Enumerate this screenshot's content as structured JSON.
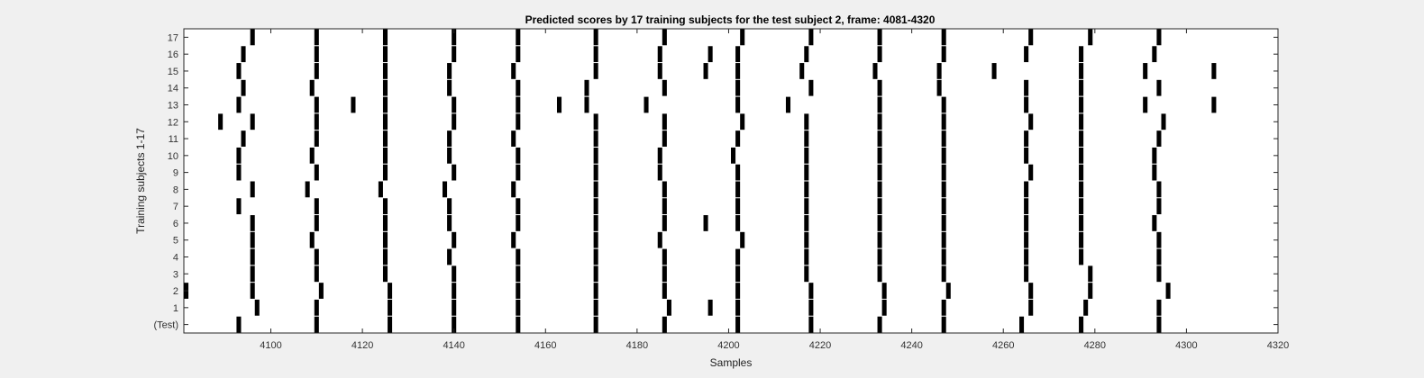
{
  "chart_data": {
    "type": "raster",
    "title": "Predicted scores by 17 training subjects for the test subject 2, frame: 4081-4320",
    "xlabel": "Samples",
    "ylabel": "Training subjects 1-17",
    "xlim": [
      4081,
      4320
    ],
    "x_ticks": [
      4100,
      4120,
      4140,
      4160,
      4180,
      4200,
      4220,
      4240,
      4260,
      4280,
      4300,
      4320
    ],
    "y_tick_labels": [
      "(Test)",
      "1",
      "2",
      "3",
      "4",
      "5",
      "6",
      "7",
      "8",
      "9",
      "10",
      "11",
      "12",
      "13",
      "14",
      "15",
      "16",
      "17"
    ],
    "grid": false,
    "legend": "none",
    "mark_color": "#000000",
    "rows": [
      {
        "label": "(Test)",
        "events": [
          4093,
          4110,
          4126,
          4140,
          4154,
          4171,
          4186,
          4202,
          4218,
          4233,
          4247,
          4264,
          4277,
          4294
        ]
      },
      {
        "label": "1",
        "events": [
          4097,
          4110,
          4126,
          4140,
          4154,
          4171,
          4187,
          4196,
          4202,
          4218,
          4234,
          4247,
          4266,
          4278,
          4294
        ]
      },
      {
        "label": "2",
        "events": [
          4081,
          4096,
          4111,
          4126,
          4140,
          4154,
          4171,
          4186,
          4202,
          4218,
          4234,
          4248,
          4266,
          4279,
          4296
        ]
      },
      {
        "label": "3",
        "events": [
          4096,
          4110,
          4125,
          4140,
          4154,
          4171,
          4186,
          4202,
          4217,
          4233,
          4247,
          4265,
          4279,
          4294
        ]
      },
      {
        "label": "4",
        "events": [
          4096,
          4110,
          4125,
          4139,
          4154,
          4171,
          4186,
          4202,
          4217,
          4233,
          4247,
          4265,
          4277,
          4294
        ]
      },
      {
        "label": "5",
        "events": [
          4096,
          4109,
          4125,
          4140,
          4153,
          4171,
          4185,
          4203,
          4217,
          4233,
          4247,
          4265,
          4277,
          4294
        ]
      },
      {
        "label": "6",
        "events": [
          4096,
          4110,
          4125,
          4139,
          4154,
          4171,
          4186,
          4195,
          4202,
          4217,
          4233,
          4247,
          4265,
          4277,
          4293
        ]
      },
      {
        "label": "7",
        "events": [
          4093,
          4110,
          4125,
          4139,
          4154,
          4171,
          4186,
          4202,
          4217,
          4233,
          4247,
          4265,
          4277,
          4294
        ]
      },
      {
        "label": "8",
        "events": [
          4096,
          4108,
          4124,
          4138,
          4153,
          4171,
          4186,
          4202,
          4217,
          4233,
          4247,
          4265,
          4277,
          4294
        ]
      },
      {
        "label": "9",
        "events": [
          4093,
          4110,
          4125,
          4140,
          4154,
          4171,
          4185,
          4202,
          4217,
          4233,
          4247,
          4266,
          4277,
          4293
        ]
      },
      {
        "label": "10",
        "events": [
          4093,
          4109,
          4125,
          4139,
          4154,
          4171,
          4185,
          4201,
          4217,
          4233,
          4247,
          4265,
          4277,
          4293
        ]
      },
      {
        "label": "11",
        "events": [
          4094,
          4110,
          4125,
          4139,
          4153,
          4171,
          4186,
          4202,
          4217,
          4233,
          4247,
          4265,
          4277,
          4294
        ]
      },
      {
        "label": "12",
        "events": [
          4089,
          4096,
          4110,
          4125,
          4140,
          4154,
          4171,
          4186,
          4203,
          4217,
          4233,
          4247,
          4266,
          4277,
          4295
        ]
      },
      {
        "label": "13",
        "events": [
          4093,
          4110,
          4118,
          4125,
          4140,
          4154,
          4163,
          4169,
          4182,
          4202,
          4213,
          4233,
          4247,
          4265,
          4277,
          4291,
          4306
        ]
      },
      {
        "label": "14",
        "events": [
          4094,
          4109,
          4125,
          4139,
          4154,
          4169,
          4186,
          4202,
          4218,
          4233,
          4246,
          4265,
          4277,
          4294
        ]
      },
      {
        "label": "15",
        "events": [
          4093,
          4110,
          4125,
          4139,
          4153,
          4171,
          4185,
          4195,
          4202,
          4216,
          4232,
          4246,
          4258,
          4277,
          4291,
          4306
        ]
      },
      {
        "label": "16",
        "events": [
          4094,
          4110,
          4125,
          4140,
          4154,
          4171,
          4185,
          4196,
          4202,
          4217,
          4233,
          4247,
          4265,
          4277,
          4293
        ]
      },
      {
        "label": "17",
        "events": [
          4096,
          4110,
          4125,
          4140,
          4154,
          4171,
          4186,
          4203,
          4218,
          4233,
          4247,
          4266,
          4279,
          4294
        ]
      }
    ]
  }
}
